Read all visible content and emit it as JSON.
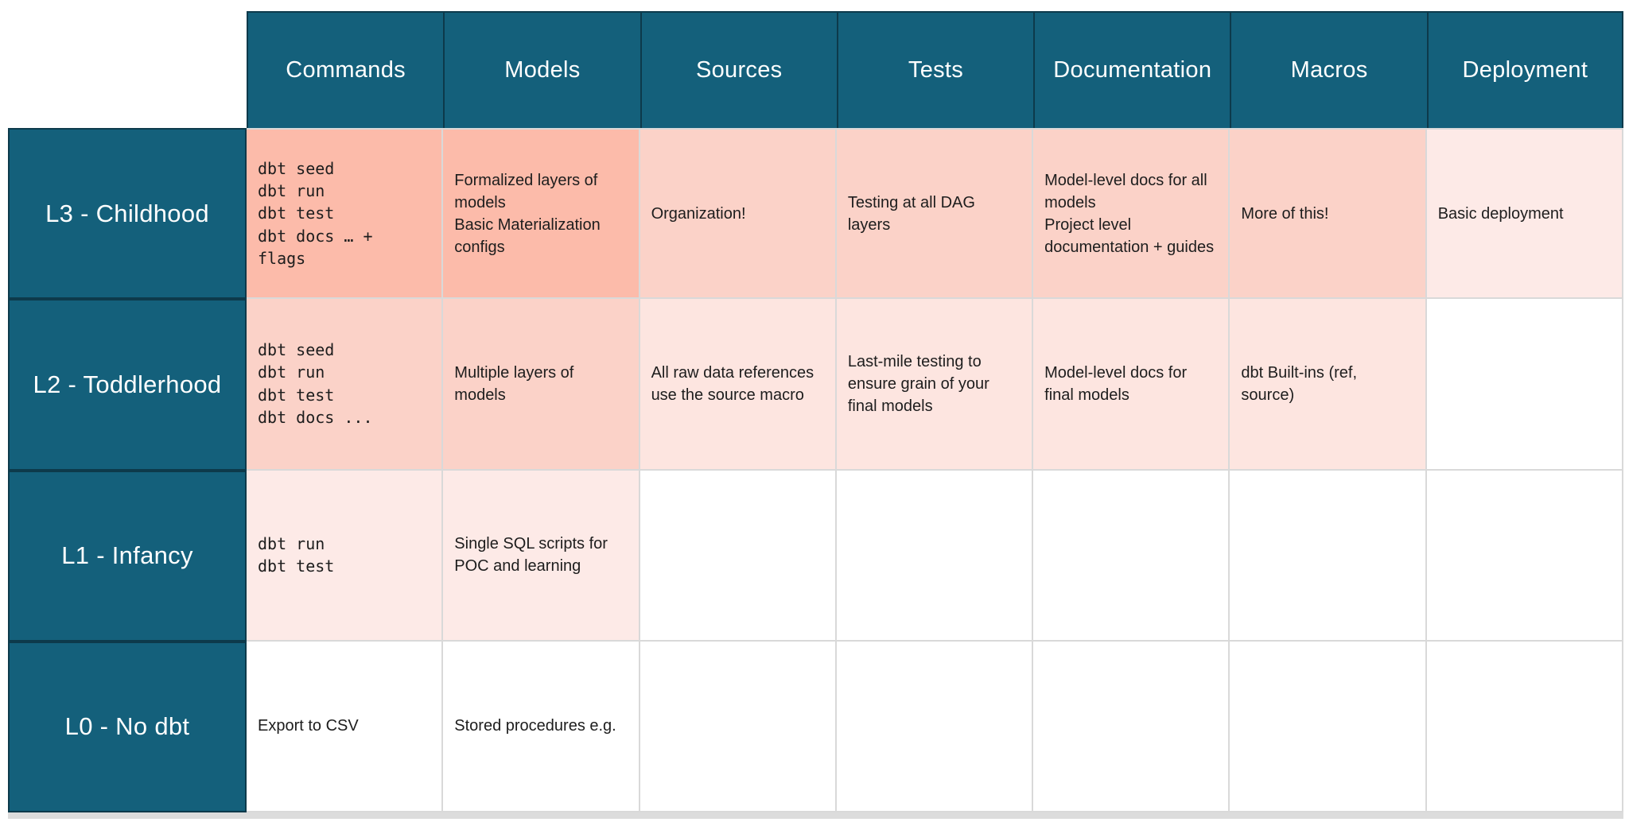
{
  "chart_data": {
    "type": "table",
    "columns": [
      "Commands",
      "Models",
      "Sources",
      "Tests",
      "Documentation",
      "Macros",
      "Deployment"
    ],
    "rows": [
      {
        "id": "l3",
        "label": "L3 - Childhood",
        "cells": [
          {
            "col": "Commands",
            "text": "dbt seed\ndbt run\ndbt test\ndbt docs … +\nflags",
            "mono": true,
            "heat": 4
          },
          {
            "col": "Models",
            "text": "Formalized layers of models\nBasic Materialization configs",
            "mono": false,
            "heat": 4
          },
          {
            "col": "Sources",
            "text": "Organization!",
            "mono": false,
            "heat": 3
          },
          {
            "col": "Tests",
            "text": "Testing at all DAG layers",
            "mono": false,
            "heat": 3
          },
          {
            "col": "Documentation",
            "text": "Model-level docs for all models\nProject level documentation + guides",
            "mono": false,
            "heat": 3
          },
          {
            "col": "Macros",
            "text": "More of this!",
            "mono": false,
            "heat": 3
          },
          {
            "col": "Deployment",
            "text": "Basic deployment",
            "mono": false,
            "heat": 1
          }
        ]
      },
      {
        "id": "l2",
        "label": "L2 - Toddlerhood",
        "cells": [
          {
            "col": "Commands",
            "text": "dbt seed\ndbt run\ndbt test\ndbt docs ...",
            "mono": true,
            "heat": 3
          },
          {
            "col": "Models",
            "text": "Multiple layers of models",
            "mono": false,
            "heat": 3
          },
          {
            "col": "Sources",
            "text": "All raw data references use the source macro",
            "mono": false,
            "heat": 2
          },
          {
            "col": "Tests",
            "text": "Last-mile testing to ensure grain of your final models",
            "mono": false,
            "heat": 2
          },
          {
            "col": "Documentation",
            "text": "Model-level docs for final models",
            "mono": false,
            "heat": 2
          },
          {
            "col": "Macros",
            "text": "dbt Built-ins (ref, source)",
            "mono": false,
            "heat": 2
          },
          {
            "col": "Deployment",
            "text": "",
            "mono": false,
            "heat": 0
          }
        ]
      },
      {
        "id": "l1",
        "label": "L1 - Infancy",
        "cells": [
          {
            "col": "Commands",
            "text": "dbt run\ndbt test",
            "mono": true,
            "heat": 1
          },
          {
            "col": "Models",
            "text": "Single SQL scripts for POC and learning",
            "mono": false,
            "heat": 1
          },
          {
            "col": "Sources",
            "text": "",
            "mono": false,
            "heat": 0
          },
          {
            "col": "Tests",
            "text": "",
            "mono": false,
            "heat": 0
          },
          {
            "col": "Documentation",
            "text": "",
            "mono": false,
            "heat": 0
          },
          {
            "col": "Macros",
            "text": "",
            "mono": false,
            "heat": 0
          },
          {
            "col": "Deployment",
            "text": "",
            "mono": false,
            "heat": 0
          }
        ]
      },
      {
        "id": "l0",
        "label": "L0 - No dbt",
        "cells": [
          {
            "col": "Commands",
            "text": "Export to CSV",
            "mono": false,
            "heat": 0
          },
          {
            "col": "Models",
            "text": "Stored procedures e.g.",
            "mono": false,
            "heat": 0
          },
          {
            "col": "Sources",
            "text": "",
            "mono": false,
            "heat": 0
          },
          {
            "col": "Tests",
            "text": "",
            "mono": false,
            "heat": 0
          },
          {
            "col": "Documentation",
            "text": "",
            "mono": false,
            "heat": 0
          },
          {
            "col": "Macros",
            "text": "",
            "mono": false,
            "heat": 0
          },
          {
            "col": "Deployment",
            "text": "",
            "mono": false,
            "heat": 0
          }
        ]
      }
    ],
    "legend_position": "none",
    "grid": true
  },
  "colors": {
    "header_bg": "#14607b",
    "header_text": "#ffffff",
    "teal_border": "#0d3a4b",
    "grid_border": "#d9d9d9",
    "bottom_strip": "#dcdcdc",
    "cell_text": "#1d1d1d",
    "heat": {
      "0": "#ffffff",
      "1": "#fdeae7",
      "2": "#fde5e0",
      "3": "#fbd2c8",
      "4": "#fcbbaa"
    }
  }
}
